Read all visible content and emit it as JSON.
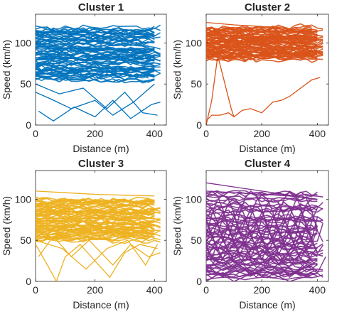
{
  "chart_data": [
    {
      "type": "line",
      "title": "Cluster 1",
      "xlabel": "Distance (m)",
      "ylabel": "Speed (km/h)",
      "xlim": [
        0,
        440
      ],
      "ylim": [
        0,
        135
      ],
      "xticks": [
        0,
        200,
        400
      ],
      "yticks": [
        0,
        50,
        100
      ],
      "color": "#0072BD",
      "speed_band": [
        55,
        118
      ],
      "series": [
        {
          "x": [
            0,
            100,
            200,
            300,
            400
          ],
          "y": [
            115,
            112,
            113,
            111,
            110
          ]
        },
        {
          "x": [
            0,
            100,
            200,
            300,
            400
          ],
          "y": [
            95,
            93,
            94,
            92,
            93
          ]
        },
        {
          "x": [
            0,
            100,
            200,
            300,
            400
          ],
          "y": [
            80,
            82,
            79,
            81,
            78
          ]
        },
        {
          "x": [
            0,
            100,
            200,
            300,
            400
          ],
          "y": [
            62,
            66,
            70,
            68,
            72
          ]
        },
        {
          "x": [
            0,
            50,
            120,
            200,
            260,
            330,
            400
          ],
          "y": [
            40,
            32,
            20,
            30,
            12,
            28,
            50
          ]
        },
        {
          "x": [
            10,
            60,
            130,
            200,
            260,
            320,
            390,
            420
          ],
          "y": [
            17,
            5,
            22,
            10,
            30,
            8,
            25,
            28
          ]
        },
        {
          "x": [
            0,
            80,
            160,
            240,
            300,
            360,
            410
          ],
          "y": [
            50,
            38,
            45,
            20,
            40,
            15,
            12
          ]
        }
      ]
    },
    {
      "type": "line",
      "title": "Cluster 2",
      "xlabel": "Distance (m)",
      "ylabel": "Speed (km/h)",
      "xlim": [
        0,
        440
      ],
      "ylim": [
        0,
        135
      ],
      "xticks": [
        0,
        200,
        400
      ],
      "yticks": [
        0,
        50,
        100
      ],
      "color": "#D95319",
      "speed_band": [
        80,
        118
      ],
      "series": [
        {
          "x": [
            0,
            100,
            200,
            300,
            400
          ],
          "y": [
            125,
            122,
            120,
            115,
            110
          ]
        },
        {
          "x": [
            0,
            100,
            200,
            300,
            400
          ],
          "y": [
            100,
            101,
            99,
            100,
            98
          ]
        },
        {
          "x": [
            0,
            100,
            200,
            300,
            400
          ],
          "y": [
            90,
            88,
            89,
            87,
            86
          ]
        },
        {
          "x": [
            0,
            20,
            40,
            60
          ],
          "y": [
            0,
            30,
            80,
            95
          ]
        },
        {
          "x": [
            0,
            20,
            50,
            80,
            100,
            130,
            160,
            200,
            240,
            270,
            300,
            340,
            380,
            410
          ],
          "y": [
            5,
            12,
            12,
            15,
            10,
            18,
            20,
            15,
            28,
            30,
            35,
            45,
            55,
            58
          ]
        },
        {
          "x": [
            30,
            60,
            90,
            100
          ],
          "y": [
            100,
            60,
            20,
            10
          ]
        },
        {
          "x": [
            250,
            300,
            340,
            380,
            400
          ],
          "y": [
            100,
            95,
            85,
            90,
            92
          ]
        }
      ]
    },
    {
      "type": "line",
      "title": "Cluster 3",
      "xlabel": "Distance (m)",
      "ylabel": "Speed (km/h)",
      "xlim": [
        0,
        440
      ],
      "ylim": [
        0,
        135
      ],
      "xticks": [
        0,
        200,
        400
      ],
      "yticks": [
        0,
        50,
        100
      ],
      "color": "#EDB120",
      "speed_band": [
        50,
        100
      ],
      "series": [
        {
          "x": [
            0,
            100,
            200,
            300,
            400
          ],
          "y": [
            110,
            108,
            106,
            105,
            104
          ]
        },
        {
          "x": [
            0,
            100,
            200,
            300,
            400
          ],
          "y": [
            85,
            84,
            86,
            83,
            82
          ]
        },
        {
          "x": [
            0,
            100,
            200,
            300,
            400
          ],
          "y": [
            65,
            62,
            66,
            60,
            58
          ]
        },
        {
          "x": [
            0,
            40,
            70,
            100,
            150,
            200,
            250,
            300,
            350,
            410
          ],
          "y": [
            45,
            20,
            0,
            30,
            45,
            25,
            5,
            35,
            45,
            40
          ]
        },
        {
          "x": [
            10,
            60,
            120,
            180,
            260,
            320,
            380,
            420
          ],
          "y": [
            30,
            55,
            30,
            50,
            20,
            45,
            30,
            35
          ]
        },
        {
          "x": [
            0,
            90,
            170,
            240,
            310,
            370,
            410
          ],
          "y": [
            50,
            40,
            15,
            40,
            50,
            20,
            45
          ]
        }
      ]
    },
    {
      "type": "line",
      "title": "Cluster 4",
      "xlabel": "Distance (m)",
      "ylabel": "Speed (km/h)",
      "xlim": [
        0,
        440
      ],
      "ylim": [
        0,
        135
      ],
      "xticks": [
        0,
        200,
        400
      ],
      "yticks": [
        0,
        50,
        100
      ],
      "color": "#7E2F8E",
      "speed_band": [
        5,
        110
      ],
      "series": [
        {
          "x": [
            0,
            100,
            200,
            300,
            400
          ],
          "y": [
            120,
            115,
            110,
            105,
            100
          ]
        },
        {
          "x": [
            0,
            100,
            200,
            300,
            400
          ],
          "y": [
            110,
            108,
            106,
            104,
            100
          ]
        },
        {
          "x": [
            0,
            60,
            120,
            180,
            240,
            300,
            360,
            420
          ],
          "y": [
            20,
            5,
            25,
            5,
            30,
            5,
            20,
            5
          ]
        },
        {
          "x": [
            0,
            80,
            160,
            240,
            320,
            400
          ],
          "y": [
            15,
            30,
            10,
            35,
            10,
            25
          ]
        },
        {
          "x": [
            0,
            50,
            100,
            200,
            300,
            400,
            430
          ],
          "y": [
            0,
            10,
            0,
            15,
            0,
            10,
            30
          ]
        }
      ]
    }
  ]
}
